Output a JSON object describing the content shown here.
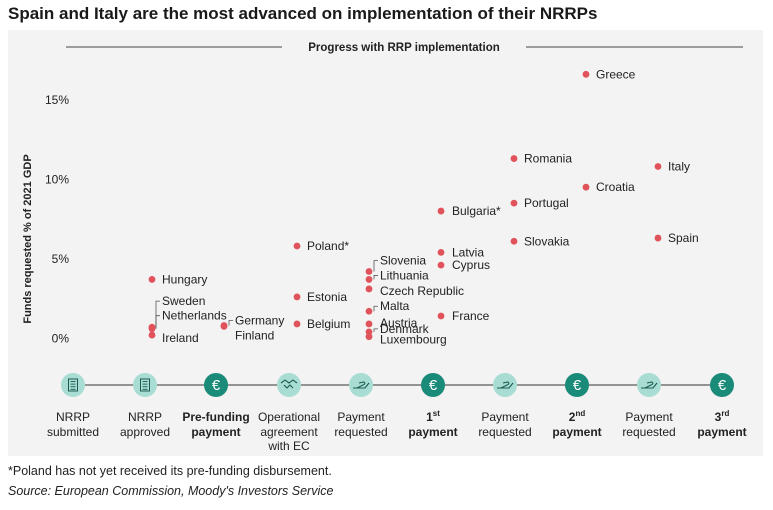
{
  "title": "Spain and Italy are the most advanced on implementation of their NRRPs",
  "footnote": "*Poland has not yet received its pre-funding disbursement.",
  "source": "Source: European Commission, Moody's Investors Service",
  "colors": {
    "panel": "#f3f3f3",
    "point": "#e0535a",
    "icon_light": "#a9ddd4",
    "icon_dark": "#1a8a79",
    "axis": "#333333"
  },
  "chart_data": {
    "type": "scatter",
    "title": "Progress with RRP implementation",
    "ylabel": "Funds requested  % of 2021 GDP",
    "ylim": [
      -2.5,
      17.5
    ],
    "yticks": [
      0,
      5,
      10,
      15
    ],
    "ytick_labels": [
      "0%",
      "5%",
      "10%",
      "15%"
    ],
    "stages": [
      {
        "l1": "NRRP",
        "l2": "submitted",
        "bold": false,
        "sup": "",
        "icon": "document-icon",
        "dark": false
      },
      {
        "l1": "NRRP",
        "l2": "approved",
        "bold": false,
        "sup": "",
        "icon": "document-icon",
        "dark": false
      },
      {
        "l1": "Pre-funding",
        "l2": "payment",
        "bold": true,
        "sup": "",
        "icon": "euro-icon",
        "dark": true
      },
      {
        "l1": "Operational",
        "l2": "agreement",
        "l3": "with EC",
        "bold": false,
        "sup": "",
        "icon": "handshake-icon",
        "dark": false
      },
      {
        "l1": "Payment",
        "l2": "requested",
        "bold": false,
        "sup": "",
        "icon": "hand-icon",
        "dark": false
      },
      {
        "l1": "1",
        "l2": "payment",
        "bold": true,
        "sup": "st",
        "icon": "euro-icon",
        "dark": true
      },
      {
        "l1": "Payment",
        "l2": "requested",
        "bold": false,
        "sup": "",
        "icon": "hand-icon",
        "dark": false
      },
      {
        "l1": "2",
        "l2": "payment",
        "bold": true,
        "sup": "nd",
        "icon": "euro-icon",
        "dark": true
      },
      {
        "l1": "Payment",
        "l2": "requested",
        "bold": false,
        "sup": "",
        "icon": "hand-icon",
        "dark": false
      },
      {
        "l1": "3",
        "l2": "payment",
        "bold": true,
        "sup": "rd",
        "icon": "euro-icon",
        "dark": true
      }
    ],
    "points": [
      {
        "country": "Hungary",
        "stage": 1,
        "value": 3.7
      },
      {
        "country": "Sweden",
        "stage": 1,
        "value": 0.7
      },
      {
        "country": "Netherlands",
        "stage": 1,
        "value": 0.6
      },
      {
        "country": "Ireland",
        "stage": 1,
        "value": 0.2
      },
      {
        "country": "Germany",
        "stage": 2,
        "value": 0.8
      },
      {
        "country": "Finland",
        "stage": 2,
        "value": 0.75
      },
      {
        "country": "Poland*",
        "stage": 3,
        "value": 5.8
      },
      {
        "country": "Estonia",
        "stage": 3,
        "value": 2.6
      },
      {
        "country": "Belgium",
        "stage": 3,
        "value": 0.9
      },
      {
        "country": "Slovenia",
        "stage": 4,
        "value": 4.2
      },
      {
        "country": "Lithuania",
        "stage": 4,
        "value": 3.7
      },
      {
        "country": "Czech Republic",
        "stage": 4,
        "value": 3.1
      },
      {
        "country": "Malta",
        "stage": 4,
        "value": 1.7
      },
      {
        "country": "Austria",
        "stage": 4,
        "value": 0.9
      },
      {
        "country": "Denmark",
        "stage": 4,
        "value": 0.4
      },
      {
        "country": "Luxembourg",
        "stage": 4,
        "value": 0.1
      },
      {
        "country": "Latvia",
        "stage": 5,
        "value": 5.4
      },
      {
        "country": "Cyprus",
        "stage": 5,
        "value": 4.6
      },
      {
        "country": "France",
        "stage": 5,
        "value": 1.4
      },
      {
        "country": "Bulgaria*",
        "stage": 5,
        "value": 8.0
      },
      {
        "country": "Romania",
        "stage": 6,
        "value": 11.3
      },
      {
        "country": "Portugal",
        "stage": 6,
        "value": 8.5
      },
      {
        "country": "Slovakia",
        "stage": 6,
        "value": 6.1
      },
      {
        "country": "Greece",
        "stage": 7,
        "value": 16.6
      },
      {
        "country": "Croatia",
        "stage": 7,
        "value": 9.5
      },
      {
        "country": "Italy",
        "stage": 8,
        "value": 10.8
      },
      {
        "country": "Spain",
        "stage": 8,
        "value": 6.3
      }
    ]
  }
}
